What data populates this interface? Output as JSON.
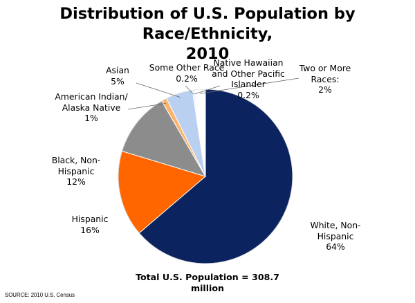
{
  "chart_data": {
    "type": "pie",
    "title": [
      "Distribution of U.S. Population by Race/Ethnicity,",
      "2010"
    ],
    "start": "top, clockwise",
    "slices": [
      {
        "key": "white",
        "label": [
          "White, Non-",
          "Hispanic",
          "64%"
        ],
        "value": 64,
        "color": "#0b235f"
      },
      {
        "key": "hispanic",
        "label": [
          "Hispanic",
          "16%"
        ],
        "value": 16,
        "color": "#ff6600"
      },
      {
        "key": "black",
        "label": [
          "Black, Non-",
          "Hispanic",
          "12%"
        ],
        "value": 12,
        "color": "#8c8c8c"
      },
      {
        "key": "aian",
        "label": [
          "American Indian/",
          "Alaska Native",
          "1%"
        ],
        "value": 1,
        "color": "#fbb36b"
      },
      {
        "key": "asian",
        "label": [
          "Asian",
          "5%"
        ],
        "value": 5,
        "color": "#b9d0f0"
      },
      {
        "key": "other",
        "label": [
          "Some Other Race",
          "0.2%"
        ],
        "value": 0.2,
        "color": "#c7daf3"
      },
      {
        "key": "nhpi",
        "label": [
          "Native Hawaiian",
          "and Other Pacific",
          "Islander",
          "0.2%"
        ],
        "value": 0.2,
        "color": "#d6e3f6"
      },
      {
        "key": "two",
        "label": [
          "Two or More",
          "Races:",
          "2%"
        ],
        "value": 2,
        "color": "#ffffff"
      }
    ],
    "total": [
      "Total U.S. Population  = 308.7",
      "million"
    ]
  },
  "source": "SOURCE: 2010 U.S. Census"
}
